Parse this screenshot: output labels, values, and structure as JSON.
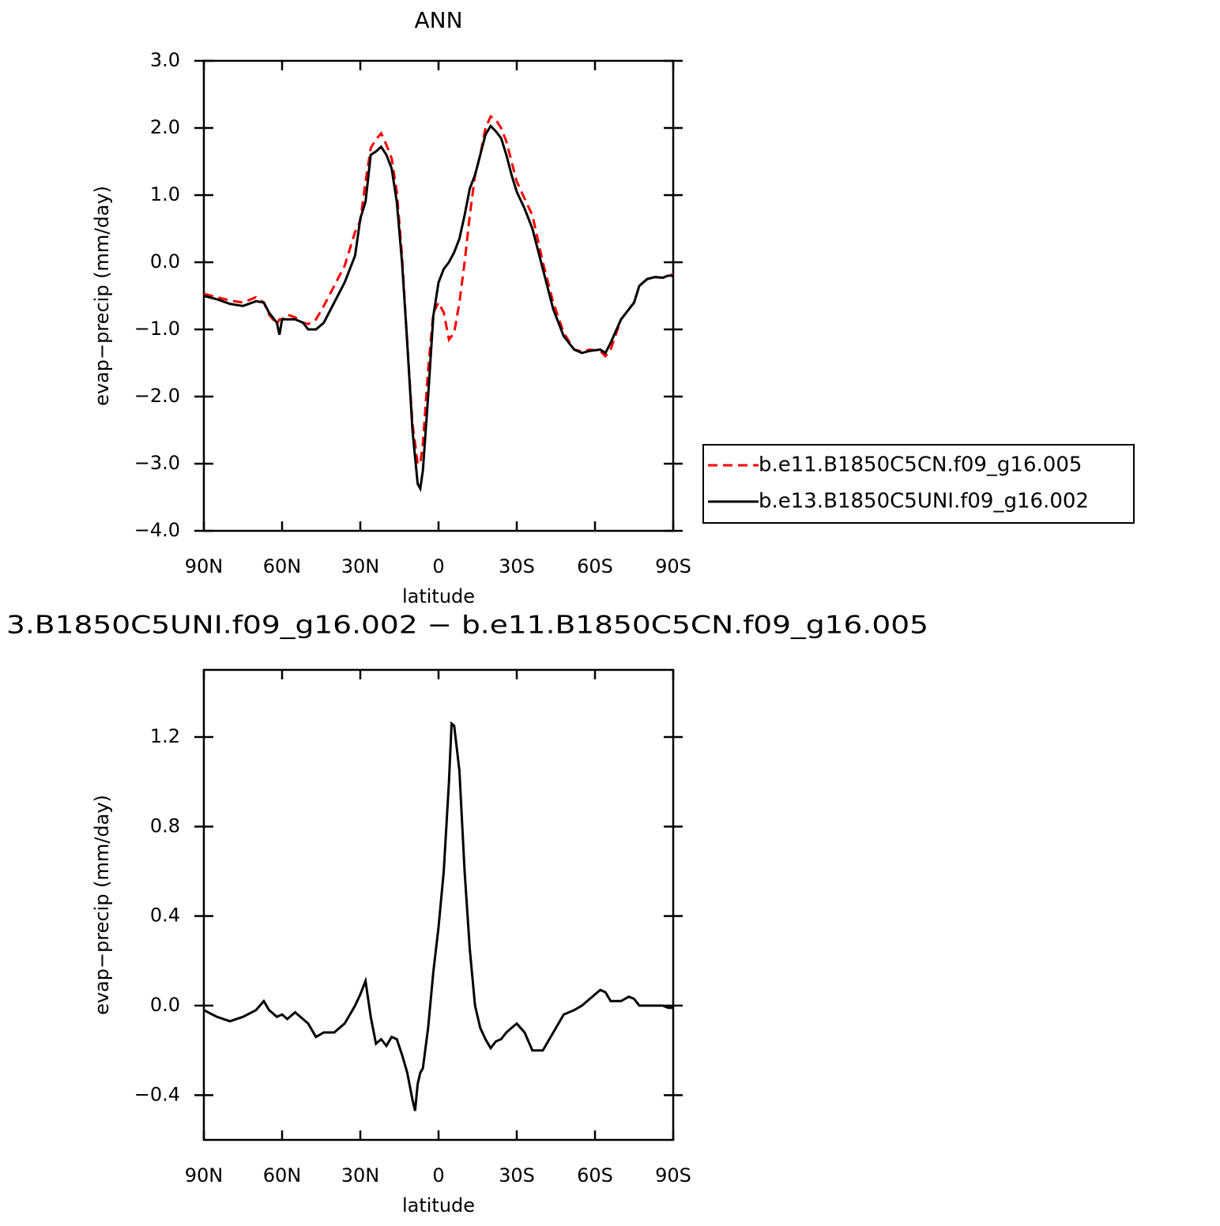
{
  "chart_data": [
    {
      "type": "line",
      "title": "ANN",
      "xlabel": "latitude",
      "ylabel": "evap−precip (mm/day)",
      "xlim": [
        90,
        -90
      ],
      "xticks": [
        {
          "value": 90,
          "label": "90N"
        },
        {
          "value": 60,
          "label": "60N"
        },
        {
          "value": 30,
          "label": "30N"
        },
        0,
        {
          "value": -30,
          "label": "30S"
        },
        {
          "value": -60,
          "label": "60S"
        },
        {
          "value": -90,
          "label": "90S"
        }
      ],
      "ylim": [
        -4,
        3
      ],
      "yticks": [
        {
          "value": 3,
          "label": "3.0"
        },
        {
          "value": 2,
          "label": "2.0"
        },
        {
          "value": 1,
          "label": "1.0"
        },
        {
          "value": 0,
          "label": "0.0"
        },
        {
          "value": -1,
          "label": "−1.0"
        },
        {
          "value": -2,
          "label": "−2.0"
        },
        {
          "value": -3,
          "label": "−3.0"
        },
        {
          "value": -4,
          "label": "−4.0"
        }
      ],
      "x": [
        90,
        85,
        80,
        75,
        70,
        67,
        65,
        62,
        61,
        60,
        58,
        55,
        52,
        50,
        47,
        44,
        40,
        36,
        32,
        30,
        28,
        26,
        24,
        22,
        20,
        18,
        16,
        14,
        12,
        10,
        8,
        7,
        6,
        4,
        2,
        0,
        -2,
        -4,
        -6,
        -8,
        -10,
        -12,
        -14,
        -16,
        -18,
        -20,
        -22,
        -24,
        -26,
        -28,
        -30,
        -33,
        -36,
        -40,
        -44,
        -48,
        -52,
        -55,
        -58,
        -62,
        -64,
        -66,
        -70,
        -73,
        -75,
        -77,
        -80,
        -83,
        -86,
        -88,
        -90
      ],
      "series": [
        {
          "name": "b.e11.B1850C5CN.f09_g16.005",
          "color": "#ff0000",
          "linestyle": "dashed",
          "values": [
            -0.47,
            -0.52,
            -0.57,
            -0.6,
            -0.52,
            -0.6,
            -0.78,
            -0.92,
            -0.85,
            -0.85,
            -0.78,
            -0.82,
            -0.9,
            -0.92,
            -0.85,
            -0.65,
            -0.35,
            -0.05,
            0.45,
            0.62,
            1.2,
            1.7,
            1.83,
            1.92,
            1.75,
            1.55,
            1.05,
            0.1,
            -1.2,
            -2.4,
            -3.0,
            -3.0,
            -2.7,
            -1.6,
            -0.75,
            -0.6,
            -0.75,
            -1.15,
            -1.05,
            -0.6,
            0.0,
            0.7,
            1.3,
            1.6,
            2.0,
            2.17,
            2.12,
            2.0,
            1.8,
            1.5,
            1.2,
            0.95,
            0.7,
            0.0,
            -0.6,
            -1.05,
            -1.3,
            -1.33,
            -1.3,
            -1.32,
            -1.4,
            -1.3,
            -0.85,
            -0.7,
            -0.6,
            -0.35,
            -0.25,
            -0.22,
            -0.23,
            -0.2,
            -0.18
          ]
        },
        {
          "name": "b.e13.B1850C5UNI.f09_g16.002",
          "color": "#000000",
          "linestyle": "solid",
          "values": [
            -0.5,
            -0.55,
            -0.62,
            -0.65,
            -0.58,
            -0.6,
            -0.75,
            -0.9,
            -1.08,
            -0.85,
            -0.85,
            -0.85,
            -0.9,
            -1.0,
            -1.0,
            -0.9,
            -0.6,
            -0.3,
            0.1,
            0.65,
            0.9,
            1.6,
            1.65,
            1.72,
            1.6,
            1.4,
            0.9,
            0.0,
            -1.2,
            -2.5,
            -3.3,
            -3.37,
            -3.1,
            -2.0,
            -0.8,
            -0.3,
            -0.1,
            0.0,
            0.15,
            0.35,
            0.7,
            1.1,
            1.3,
            1.6,
            1.9,
            2.03,
            1.95,
            1.85,
            1.6,
            1.3,
            1.05,
            0.8,
            0.5,
            -0.1,
            -0.7,
            -1.1,
            -1.3,
            -1.35,
            -1.32,
            -1.3,
            -1.35,
            -1.2,
            -0.85,
            -0.7,
            -0.6,
            -0.35,
            -0.25,
            -0.22,
            -0.23,
            -0.2,
            -0.2
          ]
        }
      ]
    },
    {
      "type": "line",
      "title": "3.B1850C5UNI.f09_g16.002 − b.e11.B1850C5CN.f09_g16.005",
      "xlabel": "latitude",
      "ylabel": "evap−precip (mm/day)",
      "xlim": [
        90,
        -90
      ],
      "xticks": [
        {
          "value": 90,
          "label": "90N"
        },
        {
          "value": 60,
          "label": "60N"
        },
        {
          "value": 30,
          "label": "30N"
        },
        0,
        {
          "value": -30,
          "label": "30S"
        },
        {
          "value": -60,
          "label": "60S"
        },
        {
          "value": -90,
          "label": "90S"
        }
      ],
      "ylim": [
        -0.6,
        1.5
      ],
      "yticks": [
        {
          "value": -0.4,
          "label": "−0.4"
        },
        {
          "value": 0,
          "label": "0.0"
        },
        0.4,
        0.8,
        1.2
      ],
      "x": [
        90,
        85,
        80,
        75,
        70,
        67,
        65,
        62,
        60,
        58,
        55,
        52,
        50,
        47,
        44,
        40,
        36,
        32,
        30,
        28,
        26,
        24,
        22,
        20,
        18,
        16,
        14,
        12,
        10,
        9,
        8,
        7,
        6,
        4,
        2,
        0,
        -2,
        -4,
        -5,
        -6,
        -8,
        -10,
        -12,
        -14,
        -16,
        -18,
        -20,
        -22,
        -24,
        -26,
        -28,
        -30,
        -33,
        -36,
        -40,
        -44,
        -48,
        -52,
        -55,
        -58,
        -62,
        -64,
        -66,
        -70,
        -73,
        -75,
        -77,
        -80,
        -83,
        -86,
        -88,
        -90
      ],
      "series": [
        {
          "color": "#000000",
          "linestyle": "solid",
          "values": [
            -0.02,
            -0.05,
            -0.07,
            -0.05,
            -0.02,
            0.02,
            -0.02,
            -0.05,
            -0.04,
            -0.06,
            -0.03,
            -0.06,
            -0.08,
            -0.14,
            -0.12,
            -0.12,
            -0.08,
            0.0,
            0.05,
            0.11,
            -0.05,
            -0.17,
            -0.15,
            -0.18,
            -0.14,
            -0.15,
            -0.22,
            -0.3,
            -0.42,
            -0.47,
            -0.35,
            -0.3,
            -0.28,
            -0.1,
            0.15,
            0.35,
            0.6,
            1.0,
            1.26,
            1.25,
            1.05,
            0.6,
            0.25,
            0.0,
            -0.1,
            -0.15,
            -0.19,
            -0.16,
            -0.15,
            -0.12,
            -0.1,
            -0.08,
            -0.12,
            -0.2,
            -0.2,
            -0.12,
            -0.04,
            -0.02,
            0.0,
            0.03,
            0.07,
            0.06,
            0.02,
            0.02,
            0.04,
            0.03,
            0.0,
            0.0,
            0.0,
            0.0,
            -0.01,
            -0.01
          ]
        }
      ]
    }
  ]
}
